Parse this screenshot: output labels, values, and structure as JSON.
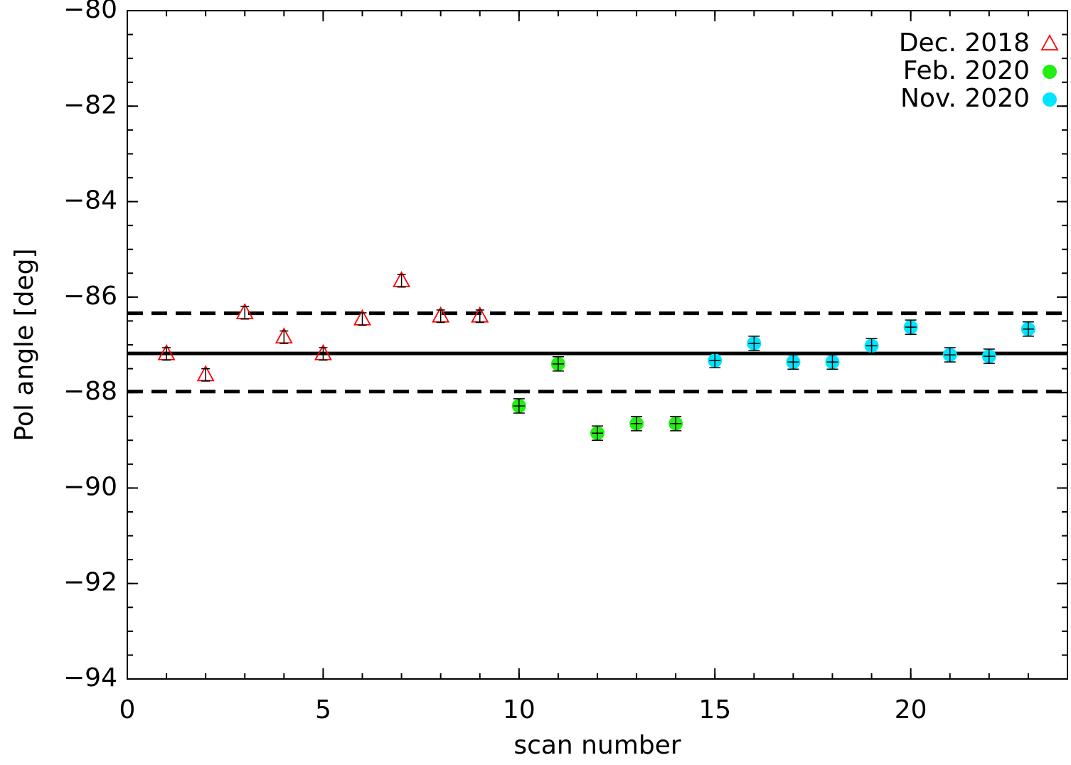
{
  "chart_data": {
    "type": "scatter",
    "xlabel": "scan number",
    "ylabel": "Pol angle [deg]",
    "xlim": [
      0,
      24
    ],
    "ylim": [
      -94,
      -80
    ],
    "xticks": [
      0,
      5,
      10,
      15,
      20
    ],
    "yticks": [
      {
        "value": -94,
        "label": "−94"
      },
      {
        "value": -92,
        "label": "−92"
      },
      {
        "value": -90,
        "label": "−90"
      },
      {
        "value": -88,
        "label": "−88"
      },
      {
        "value": -86,
        "label": "−86"
      },
      {
        "value": -84,
        "label": "−84"
      },
      {
        "value": -82,
        "label": "−82"
      },
      {
        "value": -80,
        "label": "−80"
      }
    ],
    "x_minor_per_major": 5,
    "y_minor_per_major": 4,
    "legend": "upper right",
    "reference_line": -87.18,
    "dashed_lines": [
      -86.34,
      -87.98
    ],
    "series": [
      {
        "name": "Dec. 2018",
        "color": "#ff0000",
        "marker": "triangle-open",
        "x": [
          1,
          2,
          3,
          4,
          5,
          6,
          7,
          8,
          9
        ],
        "values": [
          -87.19,
          -87.63,
          -86.33,
          -86.84,
          -87.19,
          -86.46,
          -85.66,
          -86.4,
          -86.4
        ],
        "errors": [
          0.13,
          0.13,
          0.13,
          0.13,
          0.13,
          0.13,
          0.13,
          0.13,
          0.13
        ]
      },
      {
        "name": "Feb. 2020",
        "color": "#22ee11",
        "marker": "circle",
        "x": [
          10,
          11,
          12,
          13,
          14
        ],
        "values": [
          -88.28,
          -87.4,
          -88.85,
          -88.65,
          -88.65
        ],
        "errors": [
          0.15,
          0.15,
          0.15,
          0.15,
          0.15
        ]
      },
      {
        "name": "Nov. 2020",
        "color": "#00e5ff",
        "marker": "circle",
        "x": [
          15,
          16,
          17,
          18,
          19,
          20,
          21,
          22,
          23
        ],
        "values": [
          -87.33,
          -86.97,
          -87.36,
          -87.36,
          -87.02,
          -86.63,
          -87.21,
          -87.24,
          -86.67
        ],
        "errors": [
          0.15,
          0.15,
          0.15,
          0.15,
          0.15,
          0.15,
          0.15,
          0.15,
          0.15
        ]
      }
    ]
  }
}
